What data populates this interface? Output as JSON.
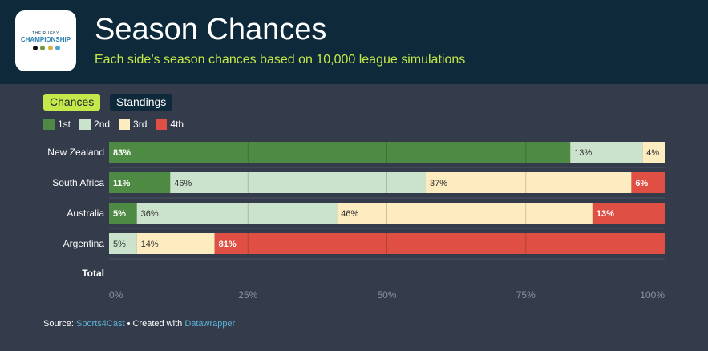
{
  "header": {
    "title": "Season Chances",
    "subtitle": "Each side’s season chances based on 10,000 league simulations",
    "logo_top": "THE RUGBY",
    "logo_main": "CHAMPIONSHIP"
  },
  "tabs": [
    {
      "label": "Chances",
      "active": true
    },
    {
      "label": "Standings",
      "active": false
    }
  ],
  "colors": {
    "1st": "#4e8a44",
    "2nd": "#cbe3cc",
    "3rd": "#fdecbf",
    "4th": "#df4f44",
    "background": "#343b4a",
    "header": "#0e2a3a",
    "accent": "#c5e84a"
  },
  "chart_data": {
    "type": "bar",
    "orientation": "horizontal",
    "stacked": true,
    "categories": [
      "New Zealand",
      "South Africa",
      "Australia",
      "Argentina"
    ],
    "series": [
      {
        "name": "1st",
        "values": [
          83,
          11,
          5,
          0
        ],
        "labels": [
          "83%",
          "11%",
          "5%",
          ""
        ]
      },
      {
        "name": "2nd",
        "values": [
          13,
          46,
          36,
          5
        ],
        "labels": [
          "13%",
          "46%",
          "36%",
          "5%"
        ]
      },
      {
        "name": "3rd",
        "values": [
          4,
          37,
          46,
          14
        ],
        "labels": [
          "4%",
          "37%",
          "46%",
          "14%"
        ]
      },
      {
        "name": "4th",
        "values": [
          0,
          6,
          13,
          81
        ],
        "labels": [
          "",
          "6%",
          "13%",
          "81%"
        ]
      }
    ],
    "total_label": "Total",
    "xlim": [
      0,
      100
    ],
    "xticks": [
      0,
      25,
      50,
      75,
      100
    ],
    "xtick_labels": [
      "0%",
      "25%",
      "50%",
      "75%",
      "100%"
    ],
    "grid": true,
    "legend": "top-left"
  },
  "footer": {
    "source_label": "Source:",
    "source_link": "Sports4Cast",
    "separator": "• Created with",
    "tool_link": "Datawrapper"
  }
}
